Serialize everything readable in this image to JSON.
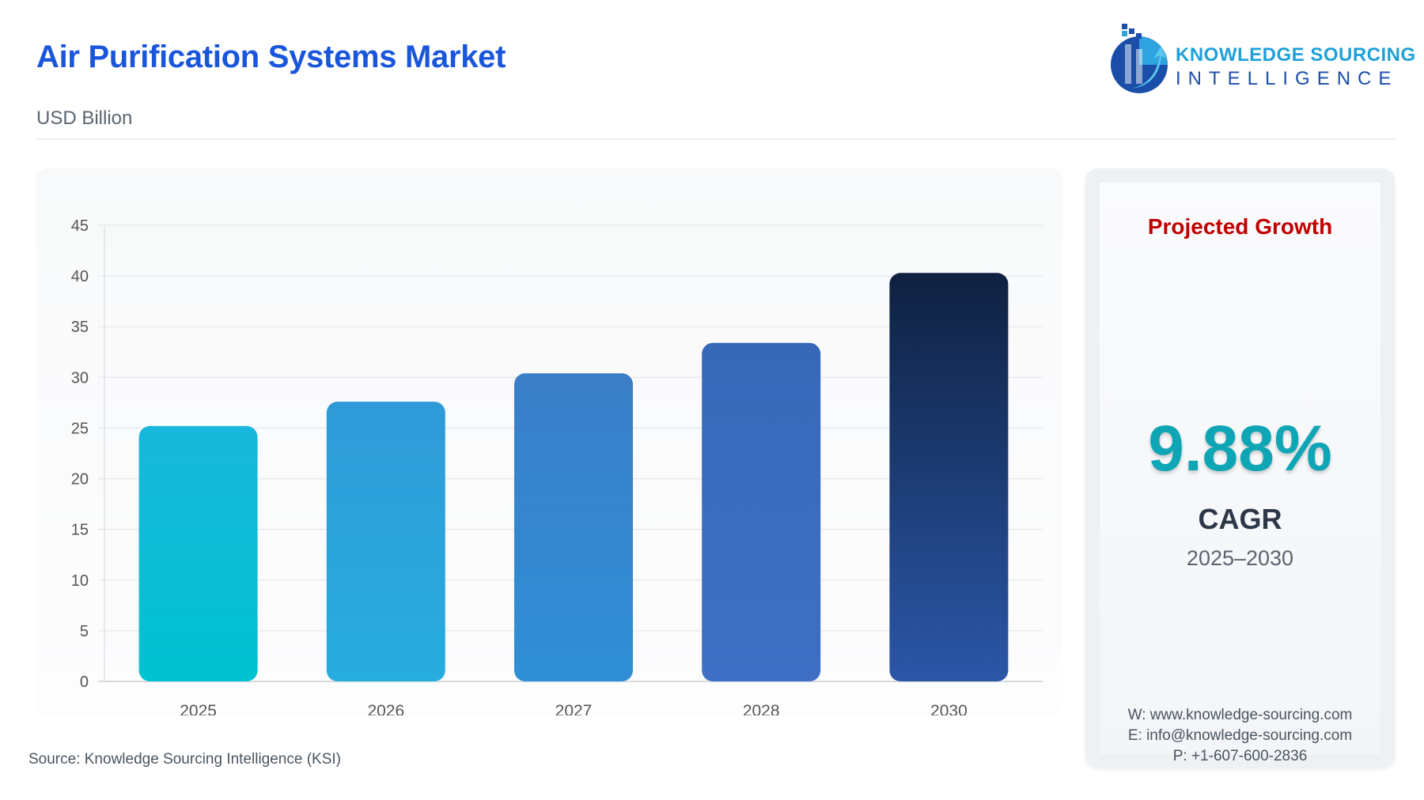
{
  "header": {
    "title": "Air Purification Systems Market",
    "subtitle": "USD Billion"
  },
  "logo": {
    "line1": "KNOWLEDGE SOURCING",
    "line2": "INTELLIGENCE"
  },
  "source": "Source: Knowledge Sourcing Intelligence (KSI)",
  "side": {
    "heading": "Projected Growth",
    "cagr_value": "9.88%",
    "cagr_label": "CAGR",
    "period": "2025–2030",
    "website": "W: www.knowledge-sourcing.com",
    "email": "E: info@knowledge-sourcing.com",
    "phone": "P: +1-607-600-2836"
  },
  "colors": {
    "title": "#1a56db",
    "accent_red": "#c00000",
    "cagr": "#0ea5b5"
  },
  "chart_data": {
    "type": "bar",
    "categories": [
      "2025",
      "2026",
      "2027",
      "2028",
      "2030"
    ],
    "values": [
      25.2,
      27.6,
      30.4,
      33.4,
      40.3
    ],
    "ylabel": "USD Billion",
    "ylim": [
      0,
      45
    ],
    "yticks": [
      0,
      5,
      10,
      15,
      20,
      25,
      30,
      35,
      40,
      45
    ],
    "grid": true,
    "bar_colors": [
      [
        "#19b8dc",
        "#00c2d1"
      ],
      [
        "#2f9ad8",
        "#27addf"
      ],
      [
        "#3a7ec8",
        "#2f8fd6"
      ],
      [
        "#3768b8",
        "#3f6fc4"
      ],
      [
        "#0f2141",
        "#2b57a8"
      ]
    ]
  }
}
